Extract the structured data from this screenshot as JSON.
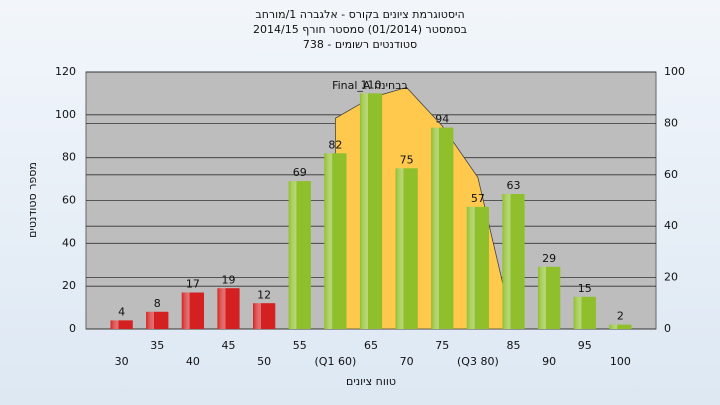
{
  "chart_data": {
    "type": "bar",
    "title_lines": [
      "היסטוגרמת ציונים בקורס - אלגברה 1/מורחב",
      "בסמסטר  (01/2014)  סמסטר חורף 2014/15",
      "סטודנטים רשומים - 738"
    ],
    "annotation": "בבחינה  Final_A",
    "x_label": "טווח ציונים",
    "y_label": "מספר סטודנטים",
    "categories": [
      "30",
      "35",
      "40",
      "45",
      "50",
      "55",
      "(Q1 60)",
      "65",
      "70",
      "75",
      "(Q3 80)",
      "85",
      "90",
      "95",
      "100"
    ],
    "values": [
      4,
      8,
      17,
      19,
      12,
      69,
      82,
      110,
      75,
      94,
      57,
      63,
      29,
      15,
      2
    ],
    "colors": [
      "#d42020",
      "#d42020",
      "#d42020",
      "#d42020",
      "#d42020",
      "#8fbf2a",
      "#8fbf2a",
      "#8fbf2a",
      "#8fbf2a",
      "#8fbf2a",
      "#8fbf2a",
      "#8fbf2a",
      "#8fbf2a",
      "#8fbf2a",
      "#8fbf2a"
    ],
    "area": {
      "axis": "y2",
      "color": "#ffc94d",
      "values": [
        null,
        null,
        null,
        null,
        null,
        null,
        82,
        90,
        94,
        79,
        59,
        0,
        null,
        null,
        null
      ]
    },
    "ylim": [
      0,
      120
    ],
    "yticks": [
      0,
      20,
      40,
      60,
      80,
      100,
      120
    ],
    "y2lim": [
      0,
      100
    ],
    "y2ticks": [
      0,
      20,
      40,
      60,
      80,
      100
    ],
    "grid": true
  }
}
